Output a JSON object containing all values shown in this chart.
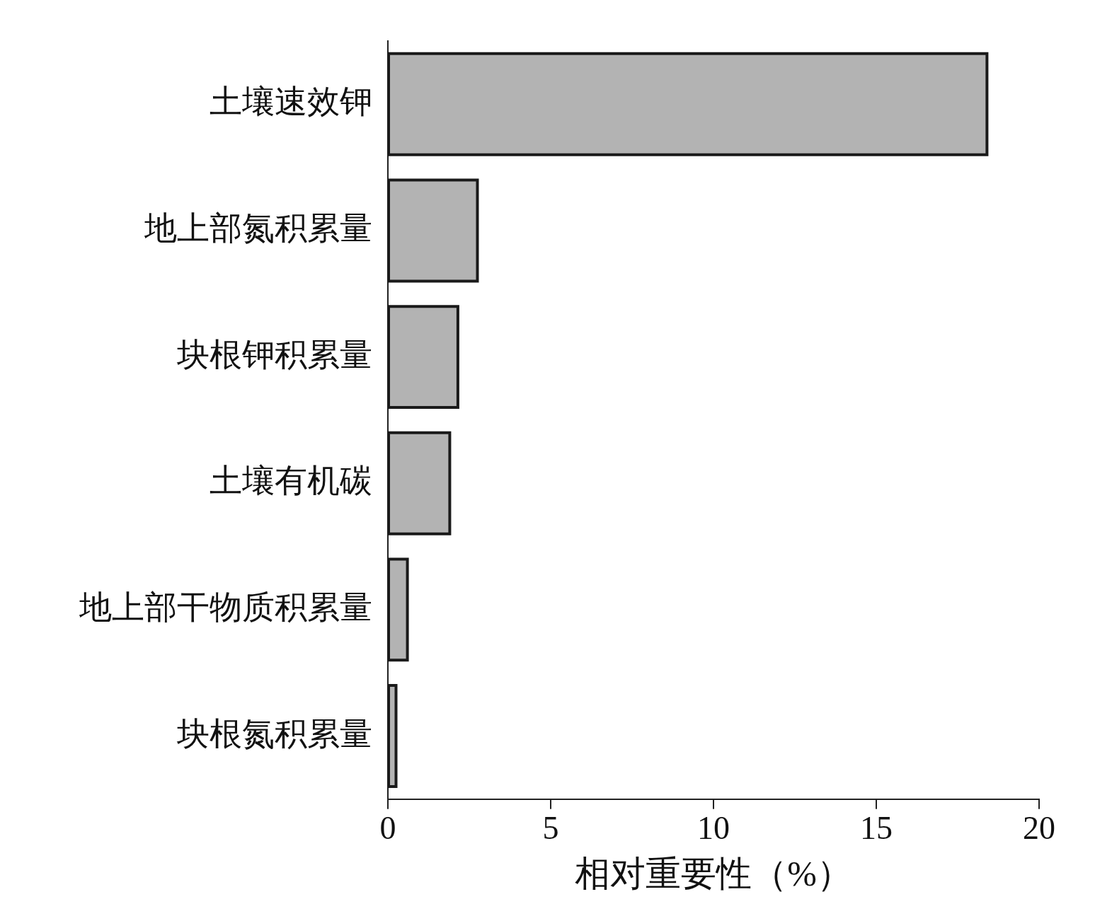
{
  "chart_data": {
    "type": "bar",
    "orientation": "horizontal",
    "categories": [
      "土壤速效钾",
      "地上部氮积累量",
      "块根钾积累量",
      "土壤有机碳",
      "地上部干物质积累量",
      "块根氮积累量"
    ],
    "values": [
      18.4,
      2.75,
      2.15,
      1.9,
      0.6,
      0.25
    ],
    "color": "#b3b3b3",
    "xlabel": "相对重要性（%）",
    "xlim": [
      0,
      20
    ],
    "xticks": [
      0,
      5,
      10,
      15,
      20
    ],
    "grid": false,
    "legend": false
  }
}
